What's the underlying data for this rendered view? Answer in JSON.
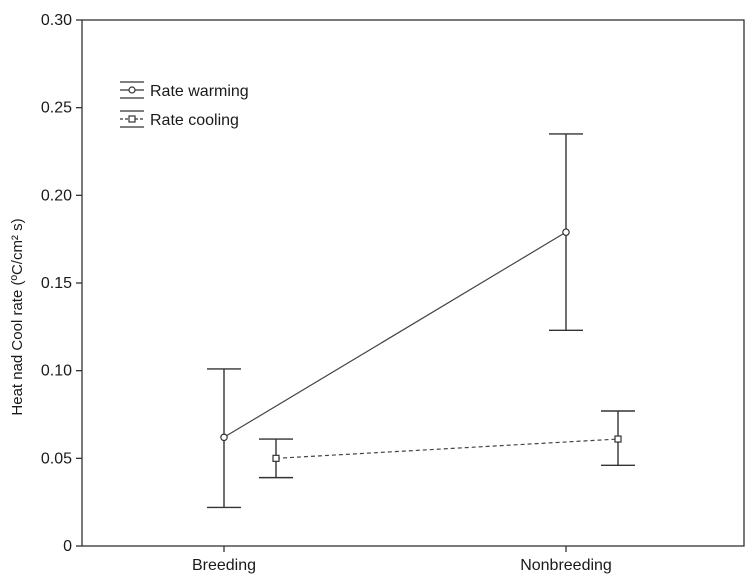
{
  "chart_data": {
    "type": "line",
    "title": "",
    "xlabel": "",
    "ylabel": "Heat nad Cool rate (ºC/cm² s)",
    "categories": [
      "Breeding",
      "Nonbreeding"
    ],
    "ylim": [
      0,
      0.3
    ],
    "yticks": [
      "0",
      "0.05",
      "0.10",
      "0.15",
      "0.20",
      "0.25",
      "0.30"
    ],
    "grid": false,
    "legend_position": "top-left",
    "series": [
      {
        "name": "Rate warming",
        "marker": "circle",
        "line_style": "solid",
        "values": [
          0.062,
          0.179
        ],
        "lower": [
          0.022,
          0.123
        ],
        "upper": [
          0.101,
          0.235
        ]
      },
      {
        "name": "Rate cooling",
        "marker": "square",
        "line_style": "dashed",
        "values": [
          0.05,
          0.061
        ],
        "lower": [
          0.039,
          0.046
        ],
        "upper": [
          0.061,
          0.077
        ]
      }
    ]
  }
}
